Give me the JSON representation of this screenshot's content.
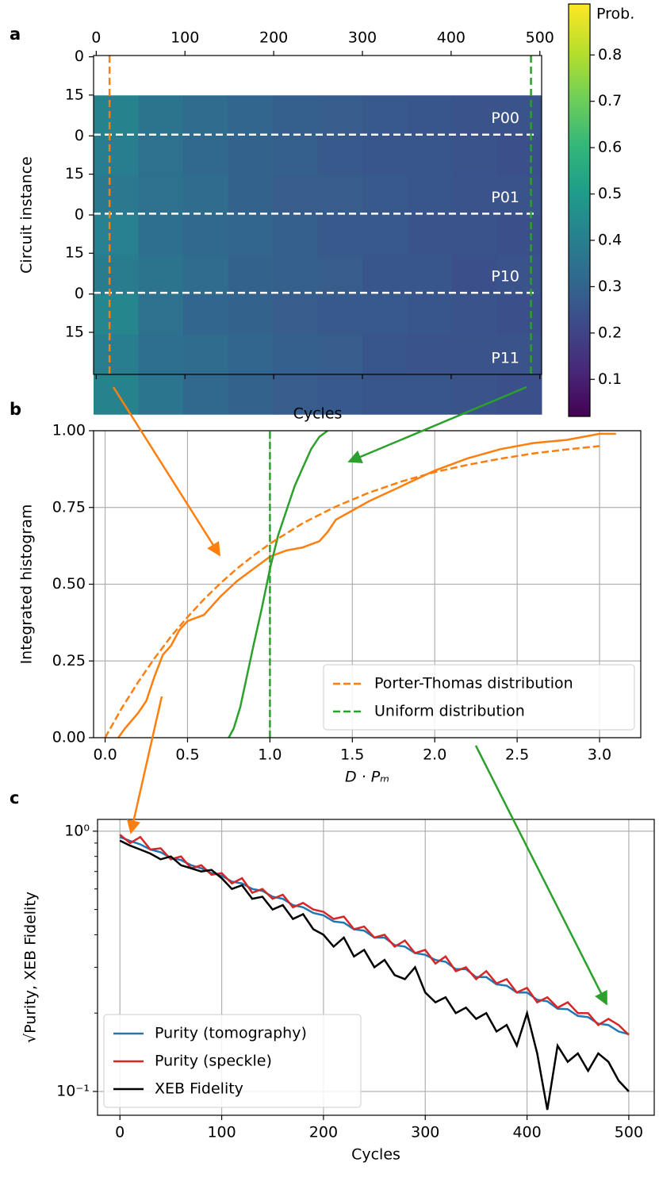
{
  "chart_data": [
    {
      "type": "heatmap",
      "panel_label": "a",
      "xlabel": "Cycles",
      "ylabel": "Circuit instance",
      "xlim": [
        -3,
        502
      ],
      "xticks": [
        0,
        100,
        200,
        300,
        400,
        500
      ],
      "ylim": [
        -0.5,
        124.5
      ],
      "yticks": [
        0,
        15,
        {
          "value": 31,
          "label": "0"
        },
        {
          "value": 46,
          "label": "15"
        },
        {
          "value": 62,
          "label": "0"
        },
        {
          "value": 77,
          "label": "15"
        },
        {
          "value": 93,
          "label": "0"
        },
        {
          "value": 108,
          "label": "15"
        }
      ],
      "z": [
        [
          0.42,
          0.36,
          0.33,
          0.31,
          0.29,
          0.28,
          0.27,
          0.26,
          0.25,
          0.25
        ],
        [
          0.4,
          0.35,
          0.32,
          0.3,
          0.29,
          0.27,
          0.26,
          0.26,
          0.25,
          0.24
        ],
        [
          0.38,
          0.35,
          0.33,
          0.3,
          0.28,
          0.28,
          0.27,
          0.26,
          0.25,
          0.25
        ],
        [
          0.41,
          0.34,
          0.32,
          0.31,
          0.29,
          0.27,
          0.27,
          0.25,
          0.25,
          0.24
        ],
        [
          0.39,
          0.36,
          0.33,
          0.3,
          0.29,
          0.28,
          0.26,
          0.26,
          0.24,
          0.25
        ],
        [
          0.43,
          0.35,
          0.31,
          0.3,
          0.28,
          0.27,
          0.27,
          0.26,
          0.25,
          0.24
        ],
        [
          0.4,
          0.34,
          0.33,
          0.31,
          0.29,
          0.28,
          0.26,
          0.25,
          0.25,
          0.25
        ],
        [
          0.42,
          0.37,
          0.32,
          0.3,
          0.28,
          0.27,
          0.26,
          0.26,
          0.25,
          0.24
        ]
      ],
      "colormap": "viridis",
      "zlim": [
        0.02,
        0.91
      ],
      "colorbar_label": "Prob.",
      "colorbar_ticks": [
        0.1,
        0.2,
        0.3,
        0.4,
        0.5,
        0.6,
        0.7,
        0.8
      ],
      "hlines": [
        30.5,
        61.5,
        92.5
      ],
      "hline_color": "#ffffff",
      "block_labels": [
        "P00",
        "P01",
        "P10",
        "P11"
      ],
      "vlines": [
        {
          "x": 15,
          "color": "#ff7f0e"
        },
        {
          "x": 490,
          "color": "#2ca02c"
        }
      ]
    },
    {
      "type": "line",
      "panel_label": "b",
      "xlabel": "D · Pₘ",
      "ylabel": "Integrated histogram",
      "xlim": [
        -0.07,
        3.25
      ],
      "ylim": [
        0,
        1
      ],
      "xticks": [
        {
          "value": 0,
          "label": "0.0"
        },
        0.5,
        {
          "value": 1,
          "label": "1.0"
        },
        1.5,
        {
          "value": 2,
          "label": "2.0"
        },
        2.5,
        {
          "value": 3,
          "label": "3.0"
        }
      ],
      "yticks": [
        {
          "value": 0,
          "label": "0.00"
        },
        0.25,
        {
          "value": 0.5,
          "label": "0.50"
        },
        0.75,
        {
          "value": 1,
          "label": "1.00"
        }
      ],
      "grid": true,
      "legend": "lower right",
      "series": [
        {
          "color": "#ff7f0e",
          "x": [
            0.08,
            0.12,
            0.2,
            0.25,
            0.3,
            0.35,
            0.4,
            0.45,
            0.5,
            0.6,
            0.7,
            0.8,
            0.9,
            1.0,
            1.1,
            1.2,
            1.3,
            1.35,
            1.4,
            1.5,
            1.6,
            1.8,
            2.0,
            2.2,
            2.4,
            2.6,
            2.8,
            3.0,
            3.1
          ],
          "values": [
            0,
            0.03,
            0.08,
            0.12,
            0.2,
            0.27,
            0.3,
            0.35,
            0.38,
            0.4,
            0.46,
            0.51,
            0.55,
            0.59,
            0.61,
            0.62,
            0.64,
            0.67,
            0.71,
            0.74,
            0.77,
            0.82,
            0.87,
            0.91,
            0.94,
            0.96,
            0.97,
            0.99,
            0.99
          ]
        },
        {
          "color": "#2ca02c",
          "x": [
            0.75,
            0.78,
            0.82,
            0.86,
            0.9,
            0.95,
            1.0,
            1.05,
            1.1,
            1.15,
            1.2,
            1.25,
            1.3,
            1.35
          ],
          "values": [
            0,
            0.03,
            0.1,
            0.2,
            0.3,
            0.42,
            0.55,
            0.66,
            0.74,
            0.82,
            0.88,
            0.94,
            0.98,
            1.0
          ]
        },
        {
          "name": "Porter-Thomas distribution",
          "color": "#ff7f0e",
          "dash": true,
          "x": [
            0,
            0.1,
            0.2,
            0.3,
            0.4,
            0.5,
            0.6,
            0.7,
            0.8,
            0.9,
            1.0,
            1.2,
            1.4,
            1.6,
            1.8,
            2.0,
            2.2,
            2.4,
            2.6,
            2.8,
            3.0
          ],
          "values": [
            0,
            0.095,
            0.181,
            0.259,
            0.33,
            0.393,
            0.451,
            0.503,
            0.551,
            0.593,
            0.632,
            0.699,
            0.753,
            0.798,
            0.835,
            0.865,
            0.889,
            0.909,
            0.926,
            0.939,
            0.95
          ]
        },
        {
          "name": "Uniform distribution",
          "color": "#2ca02c",
          "dash": true,
          "x": [
            1,
            1
          ],
          "values": [
            0,
            1
          ]
        }
      ]
    },
    {
      "type": "line",
      "panel_label": "c",
      "xlabel": "Cycles",
      "ylabel": "√Purity, XEB Fidelity",
      "xlim": [
        -22,
        525
      ],
      "ylim": [
        0.081,
        1.11
      ],
      "ylog": true,
      "xticks": [
        0,
        100,
        200,
        300,
        400,
        500
      ],
      "yticks": [
        {
          "value": 0.1,
          "label": "10⁻¹"
        },
        {
          "value": 1,
          "label": "10⁰"
        }
      ],
      "yminorticks": [
        0.2,
        0.3,
        0.4,
        0.5,
        0.6,
        0.7,
        0.8,
        0.9
      ],
      "grid": true,
      "legend": "lower left",
      "x": [
        0,
        10,
        20,
        30,
        40,
        50,
        60,
        70,
        80,
        90,
        100,
        110,
        120,
        130,
        140,
        150,
        160,
        170,
        180,
        190,
        200,
        210,
        220,
        230,
        240,
        250,
        260,
        270,
        280,
        290,
        300,
        310,
        320,
        330,
        340,
        350,
        360,
        370,
        380,
        390,
        400,
        410,
        420,
        430,
        440,
        450,
        460,
        470,
        480,
        490,
        500
      ],
      "series": [
        {
          "name": "Purity (tomography)",
          "color": "#1f77b4",
          "values": [
            0.95,
            0.917,
            0.89,
            0.85,
            0.83,
            0.79,
            0.775,
            0.74,
            0.72,
            0.69,
            0.675,
            0.64,
            0.63,
            0.6,
            0.59,
            0.56,
            0.55,
            0.52,
            0.51,
            0.485,
            0.475,
            0.45,
            0.445,
            0.42,
            0.415,
            0.39,
            0.39,
            0.365,
            0.36,
            0.34,
            0.335,
            0.32,
            0.315,
            0.295,
            0.295,
            0.275,
            0.275,
            0.258,
            0.255,
            0.24,
            0.24,
            0.225,
            0.222,
            0.208,
            0.207,
            0.195,
            0.193,
            0.182,
            0.18,
            0.17,
            0.166
          ]
        },
        {
          "name": "Purity (speckle)",
          "color": "#d62728",
          "values": [
            0.97,
            0.9,
            0.95,
            0.85,
            0.86,
            0.78,
            0.8,
            0.72,
            0.74,
            0.68,
            0.69,
            0.63,
            0.66,
            0.58,
            0.6,
            0.55,
            0.57,
            0.51,
            0.53,
            0.5,
            0.49,
            0.46,
            0.47,
            0.42,
            0.43,
            0.39,
            0.4,
            0.36,
            0.38,
            0.34,
            0.35,
            0.31,
            0.33,
            0.29,
            0.3,
            0.27,
            0.29,
            0.26,
            0.27,
            0.24,
            0.25,
            0.22,
            0.23,
            0.21,
            0.22,
            0.2,
            0.2,
            0.18,
            0.19,
            0.18,
            0.165
          ]
        },
        {
          "name": "XEB Fidelity",
          "color": "#000000",
          "values": [
            0.92,
            0.88,
            0.85,
            0.82,
            0.78,
            0.8,
            0.74,
            0.72,
            0.7,
            0.71,
            0.66,
            0.6,
            0.62,
            0.55,
            0.56,
            0.5,
            0.52,
            0.46,
            0.48,
            0.42,
            0.4,
            0.36,
            0.39,
            0.33,
            0.35,
            0.3,
            0.32,
            0.28,
            0.27,
            0.3,
            0.24,
            0.22,
            0.23,
            0.2,
            0.21,
            0.19,
            0.2,
            0.17,
            0.18,
            0.15,
            0.2,
            0.14,
            0.085,
            0.15,
            0.13,
            0.14,
            0.12,
            0.14,
            0.13,
            0.11,
            0.1
          ]
        }
      ]
    }
  ]
}
